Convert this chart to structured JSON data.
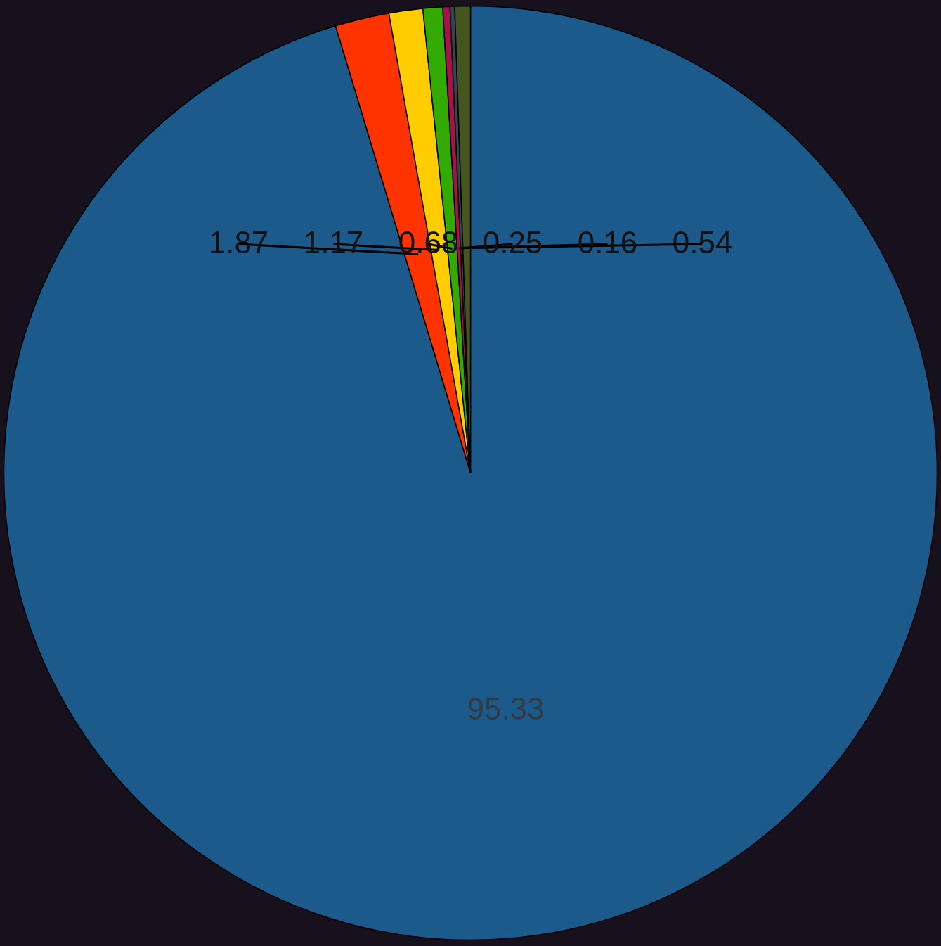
{
  "chart_data": {
    "type": "pie",
    "categories": [
      null,
      null,
      null,
      null,
      null,
      null,
      null
    ],
    "values": [
      95.33,
      1.87,
      1.17,
      0.68,
      0.25,
      0.16,
      0.54
    ],
    "colors": [
      "#1d5a8c",
      "#ff3300",
      "#ffcc00",
      "#33aa00",
      "#aa1144",
      "#334455",
      "#445522"
    ],
    "data_labels": true
  }
}
